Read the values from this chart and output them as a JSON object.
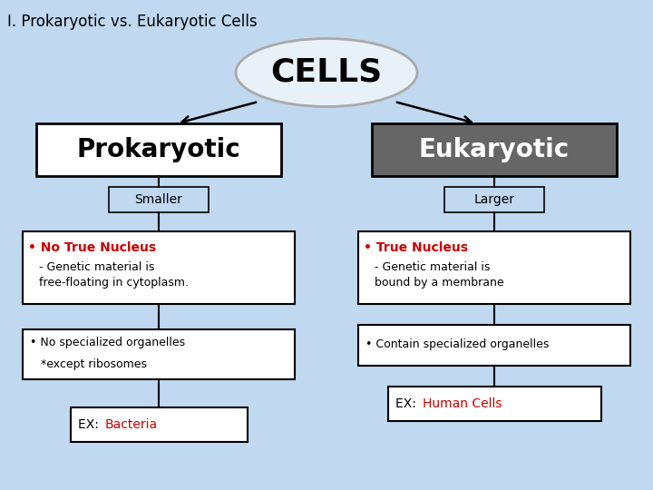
{
  "title": "I. Prokaryotic vs. Eukaryotic Cells",
  "title_fontsize": 12,
  "title_bold": false,
  "bg_color": "#c0d8f0",
  "cells_label": "CELLS",
  "cells_ellipse_facecolor": "#e8f0f8",
  "cells_ellipse_edge": "#aaaaaa",
  "cells_fontsize": 26,
  "prokaryotic_label": "Prokaryotic",
  "prokaryotic_box_color": "#ffffff",
  "prokaryotic_box_edge": "#000000",
  "prokaryotic_fontsize": 20,
  "eukaryotic_label": "Eukaryotic",
  "eukaryotic_box_color": "#666666",
  "eukaryotic_box_edge": "#000000",
  "eukaryotic_fontsize": 20,
  "eukaryotic_text_color": "#ffffff",
  "smaller_label": "Smaller",
  "larger_label": "Larger",
  "size_fontsize": 10,
  "nucleus_pro_bullet": "• No True Nucleus",
  "nucleus_pro_sub": "   - Genetic material is\n   free-floating in cytoplasm.",
  "nucleus_euk_bullet": "• True Nucleus",
  "nucleus_euk_sub": "   - Genetic material is\n   bound by a membrane",
  "organelles_pro_line1": "• No specialized organelles",
  "organelles_pro_line2": "   *except ribosomes",
  "organelles_euk": "• Contain specialized organelles",
  "ex_pro_black": "EX: ",
  "ex_pro_colored": "Bacteria",
  "ex_euk_black": "EX: ",
  "ex_euk_colored": "Human Cells",
  "ex_color": "#cc0000",
  "bullet_color": "#cc0000",
  "body_color": "#000000",
  "body_fontsize": 9,
  "bullet_fontsize": 10,
  "box_edge_color": "#000000",
  "line_color": "#000000"
}
